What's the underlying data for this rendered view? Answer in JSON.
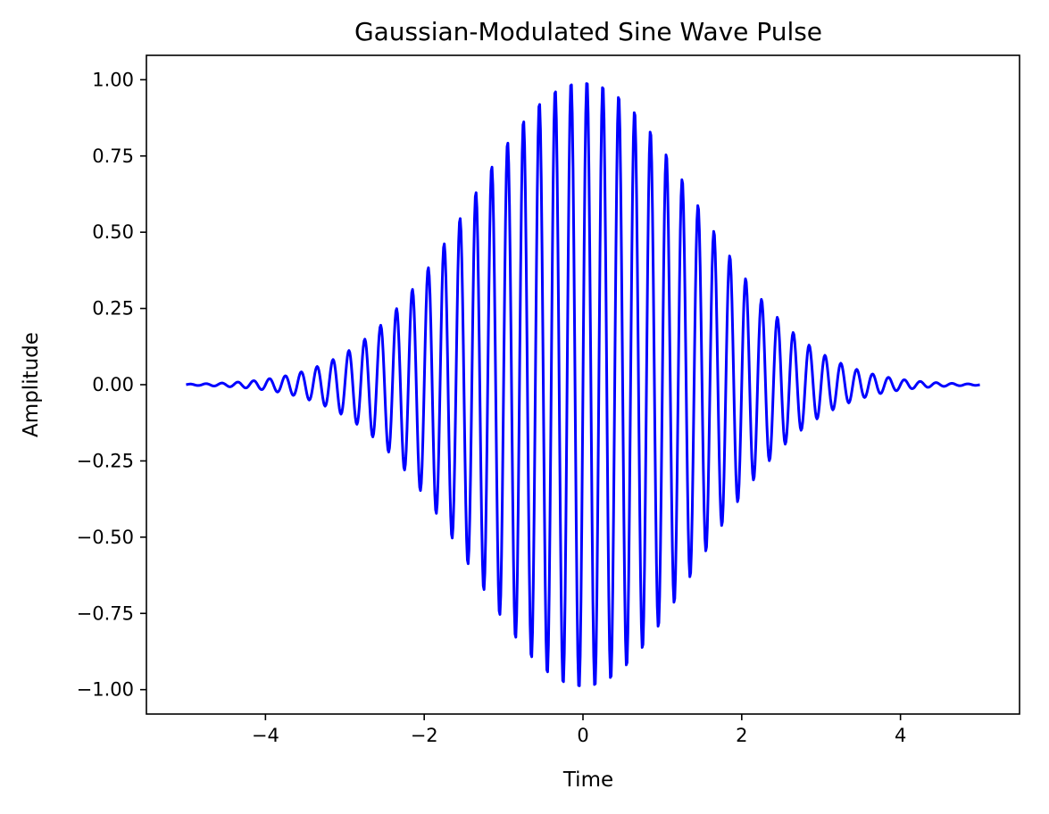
{
  "chart_data": {
    "type": "line",
    "title": "Gaussian-Modulated Sine Wave Pulse",
    "xlabel": "Time",
    "ylabel": "Amplitude",
    "xlim": [
      -5.5,
      5.5
    ],
    "ylim": [
      -1.08,
      1.08
    ],
    "x_range": [
      -5,
      5
    ],
    "xticks": [
      -4,
      -2,
      0,
      2,
      4
    ],
    "xtick_labels": [
      "−4",
      "−2",
      "0",
      "2",
      "4"
    ],
    "yticks": [
      1.0,
      0.75,
      0.5,
      0.25,
      0.0,
      -0.25,
      -0.5,
      -0.75,
      -1.0
    ],
    "ytick_labels": [
      "1.00",
      "0.75",
      "0.50",
      "0.25",
      "0.00",
      "−0.25",
      "−0.50",
      "−0.75",
      "−1.00"
    ],
    "grid": false,
    "legend": false,
    "series": [
      {
        "function": "exp(-x^2 / 4) * sin(2*pi*5*x)",
        "envelope_peak": 1.0,
        "envelope_sigma": 1.41,
        "frequency": 5,
        "samples": 1000,
        "color": "#0000ff"
      }
    ]
  }
}
